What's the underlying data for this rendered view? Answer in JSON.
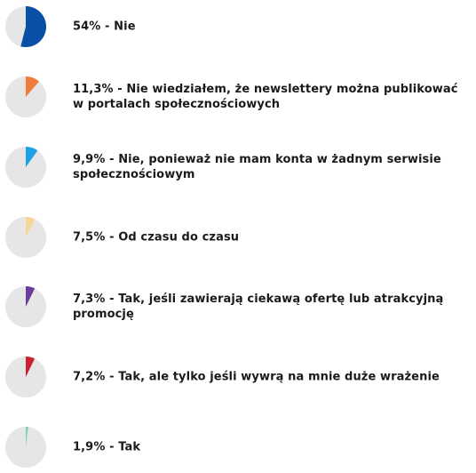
{
  "chart_data": {
    "type": "pie",
    "items": [
      {
        "value": 54.0,
        "label": "54% - Nie",
        "color": "#0a4fa6"
      },
      {
        "value": 11.3,
        "label": "11,3% - Nie wiedziałem, że newslettery można publikować w portalach społecznościowych",
        "color": "#f07b3a"
      },
      {
        "value": 9.9,
        "label": "9,9% - Nie, ponieważ nie mam konta w żadnym serwisie społecznościowym",
        "color": "#1ea0e6"
      },
      {
        "value": 7.5,
        "label": "7,5% - Od czasu do czasu",
        "color": "#f8d69a"
      },
      {
        "value": 7.3,
        "label": "7,3% - Tak, jeśli zawierają ciekawą ofertę lub atrakcyjną promocję",
        "color": "#6b3a9a"
      },
      {
        "value": 7.2,
        "label": "7,2% - Tak, ale tylko jeśli wywrą na mnie duże wrażenie",
        "color": "#cc1f2f"
      },
      {
        "value": 1.9,
        "label": "1,9% - Tak",
        "color": "#7fcfbd"
      }
    ],
    "track_color": "#e6e6e6"
  }
}
